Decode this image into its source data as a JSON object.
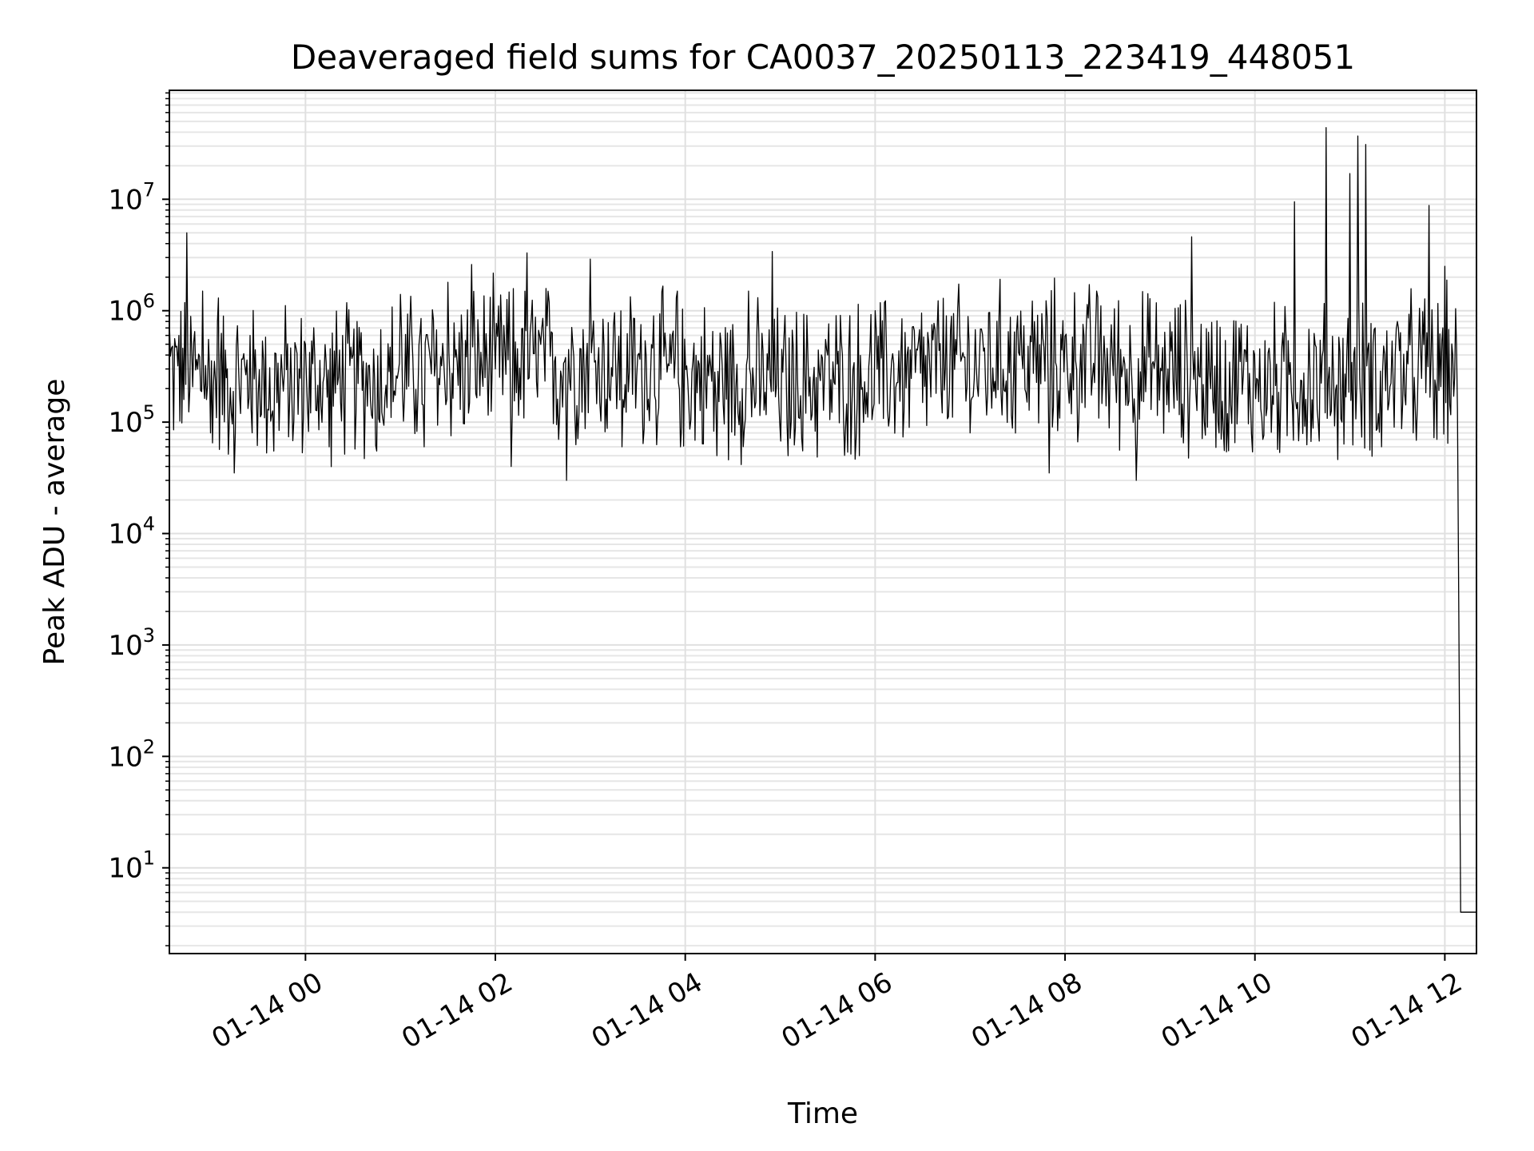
{
  "chart_data": {
    "type": "line",
    "title": "Deaveraged field sums for CA0037_20250113_223419_448051",
    "xlabel": "Time",
    "ylabel": "Peak ADU - average",
    "yscale": "log",
    "grid": true,
    "line_color": "#000000",
    "x_tick_labels": [
      "01-14 00",
      "01-14 02",
      "01-14 04",
      "01-14 06",
      "01-14 08",
      "01-14 10",
      "01-14 12"
    ],
    "y_tick_labels": [
      {
        "base": "10",
        "exp": "1"
      },
      {
        "base": "10",
        "exp": "2"
      },
      {
        "base": "10",
        "exp": "3"
      },
      {
        "base": "10",
        "exp": "4"
      },
      {
        "base": "10",
        "exp": "5"
      },
      {
        "base": "10",
        "exp": "6"
      },
      {
        "base": "10",
        "exp": "7"
      }
    ],
    "y_tick_values": [
      10,
      100,
      1000,
      10000,
      100000,
      1000000,
      10000000
    ],
    "ylim": [
      1.7,
      95000000
    ],
    "xlim": [
      "2025-01-13 22:34",
      "2025-01-14 12:20"
    ],
    "series": [
      {
        "values": [
          [
            "2025-01-13 22:34",
            800000
          ],
          [
            "2025-01-13 22:40",
            600000
          ],
          [
            "2025-01-13 22:45",
            5000000
          ],
          [
            "2025-01-13 22:50",
            650000
          ],
          [
            "2025-01-13 22:55",
            1500000
          ],
          [
            "2025-01-13 23:00",
            80000
          ],
          [
            "2025-01-13 23:05",
            1300000
          ],
          [
            "2025-01-13 23:10",
            250000
          ],
          [
            "2025-01-13 23:15",
            35000
          ],
          [
            "2025-01-13 23:25",
            600000
          ],
          [
            "2025-01-13 23:40",
            55000
          ],
          [
            "2025-01-14 00:00",
            500000
          ],
          [
            "2025-01-14 00:15",
            60000
          ],
          [
            "2025-01-14 00:30",
            400000
          ],
          [
            "2025-01-14 00:45",
            55000
          ],
          [
            "2025-01-14 01:00",
            1400000
          ],
          [
            "2025-01-14 01:15",
            60000
          ],
          [
            "2025-01-14 01:30",
            1800000
          ],
          [
            "2025-01-14 01:45",
            2600000
          ],
          [
            "2025-01-14 02:00",
            300000
          ],
          [
            "2025-01-14 02:10",
            40000
          ],
          [
            "2025-01-14 02:20",
            3300000
          ],
          [
            "2025-01-14 02:40",
            70000
          ],
          [
            "2025-01-14 02:45",
            30000
          ],
          [
            "2025-01-14 03:00",
            2900000
          ],
          [
            "2025-01-14 03:20",
            60000
          ],
          [
            "2025-01-14 03:40",
            900000
          ],
          [
            "2025-01-14 03:55",
            1500000
          ],
          [
            "2025-01-14 04:20",
            50000
          ],
          [
            "2025-01-14 04:40",
            1500000
          ],
          [
            "2025-01-14 04:55",
            3400000
          ],
          [
            "2025-01-14 05:05",
            50000
          ],
          [
            "2025-01-14 05:30",
            400000
          ],
          [
            "2025-01-14 05:50",
            50000
          ],
          [
            "2025-01-14 06:00",
            1000000
          ],
          [
            "2025-01-14 06:30",
            150000
          ],
          [
            "2025-01-14 06:45",
            900000
          ],
          [
            "2025-01-14 07:00",
            80000
          ],
          [
            "2025-01-14 07:30",
            900000
          ],
          [
            "2025-01-14 07:50",
            35000
          ],
          [
            "2025-01-14 08:10",
            500000
          ],
          [
            "2025-01-14 08:20",
            1500000
          ],
          [
            "2025-01-14 08:45",
            30000
          ],
          [
            "2025-01-14 09:05",
            300000
          ],
          [
            "2025-01-14 09:20",
            4600000
          ],
          [
            "2025-01-14 09:30",
            90000
          ],
          [
            "2025-01-14 09:50",
            700000
          ],
          [
            "2025-01-14 10:05",
            70000
          ],
          [
            "2025-01-14 10:25",
            9500000
          ],
          [
            "2025-01-14 10:40",
            100000
          ],
          [
            "2025-01-14 10:45",
            44000000
          ],
          [
            "2025-01-14 10:55",
            100000
          ],
          [
            "2025-01-14 11:00",
            17000000
          ],
          [
            "2025-01-14 11:05",
            37000000
          ],
          [
            "2025-01-14 11:10",
            31000000
          ],
          [
            "2025-01-14 11:20",
            60000
          ],
          [
            "2025-01-14 11:30",
            800000
          ],
          [
            "2025-01-14 11:40",
            80000
          ],
          [
            "2025-01-14 11:50",
            8800000
          ],
          [
            "2025-01-14 11:55",
            70000
          ],
          [
            "2025-01-14 12:00",
            2500000
          ],
          [
            "2025-01-14 12:05",
            400000
          ],
          [
            "2025-01-14 12:08",
            130000
          ],
          [
            "2025-01-14 12:10",
            4
          ],
          [
            "2025-01-14 12:20",
            4
          ]
        ]
      }
    ]
  }
}
